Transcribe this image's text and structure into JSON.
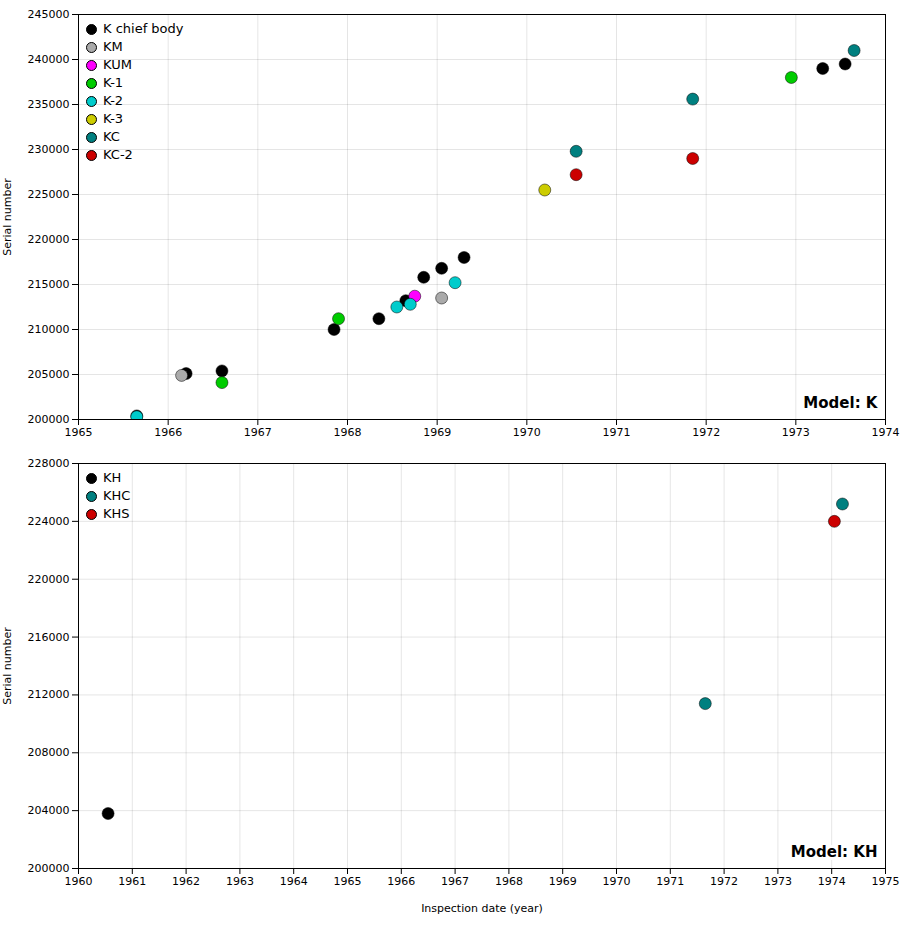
{
  "chart_data": [
    {
      "type": "scatter",
      "title": "Model: K",
      "ylabel": "Serial number",
      "xlim": [
        1965,
        1974
      ],
      "ylim": [
        200000,
        245000
      ],
      "xticks": [
        1965,
        1966,
        1967,
        1968,
        1969,
        1970,
        1971,
        1972,
        1973,
        1974
      ],
      "yticks": [
        200000,
        205000,
        210000,
        215000,
        220000,
        225000,
        230000,
        235000,
        240000,
        245000
      ],
      "grid": true,
      "legend": "upper left",
      "series": [
        {
          "name": "K chief body",
          "color": "#000000",
          "x": [
            1965.65,
            1966.2,
            1966.6,
            1967.85,
            1968.35,
            1968.65,
            1968.85,
            1969.05,
            1969.3,
            1973.3,
            1973.55
          ],
          "values": [
            200400,
            205100,
            205400,
            210000,
            211200,
            213200,
            215800,
            216800,
            218000,
            239000,
            239500
          ]
        },
        {
          "name": "KM",
          "color": "#aaaaaa",
          "x": [
            1966.15,
            1969.05
          ],
          "values": [
            204900,
            213500
          ]
        },
        {
          "name": "KUM",
          "color": "#ff00ff",
          "x": [
            1968.75
          ],
          "values": [
            213700
          ]
        },
        {
          "name": "K-1",
          "color": "#00cc00",
          "x": [
            1966.6,
            1967.9,
            1972.95
          ],
          "values": [
            204100,
            211200,
            238000
          ]
        },
        {
          "name": "K-2",
          "color": "#00cccc",
          "x": [
            1965.65,
            1968.55,
            1968.7,
            1969.2
          ],
          "values": [
            200300,
            212500,
            212800,
            215200
          ]
        },
        {
          "name": "K-3",
          "color": "#cccc00",
          "x": [
            1970.2
          ],
          "values": [
            225500
          ]
        },
        {
          "name": "KC",
          "color": "#008080",
          "x": [
            1970.55,
            1971.85,
            1973.65
          ],
          "values": [
            229800,
            235600,
            241000
          ]
        },
        {
          "name": "KC-2",
          "color": "#cc0000",
          "x": [
            1970.55,
            1971.85
          ],
          "values": [
            227200,
            229000
          ]
        }
      ]
    },
    {
      "type": "scatter",
      "title": "Model: KH",
      "xlabel": "Inspection date (year)",
      "ylabel": "Serial number",
      "xlim": [
        1960,
        1975
      ],
      "ylim": [
        200000,
        228000
      ],
      "xticks": [
        1960,
        1961,
        1962,
        1963,
        1964,
        1965,
        1966,
        1967,
        1968,
        1969,
        1970,
        1971,
        1972,
        1973,
        1974,
        1975
      ],
      "yticks": [
        200000,
        204000,
        208000,
        212000,
        216000,
        220000,
        224000,
        228000
      ],
      "grid": true,
      "legend": "upper left",
      "series": [
        {
          "name": "KH",
          "color": "#000000",
          "x": [
            1960.55
          ],
          "values": [
            203800
          ]
        },
        {
          "name": "KHC",
          "color": "#008080",
          "x": [
            1971.65,
            1974.2
          ],
          "values": [
            211400,
            225200
          ]
        },
        {
          "name": "KHS",
          "color": "#cc0000",
          "x": [
            1974.05
          ],
          "values": [
            224000
          ]
        }
      ]
    }
  ]
}
